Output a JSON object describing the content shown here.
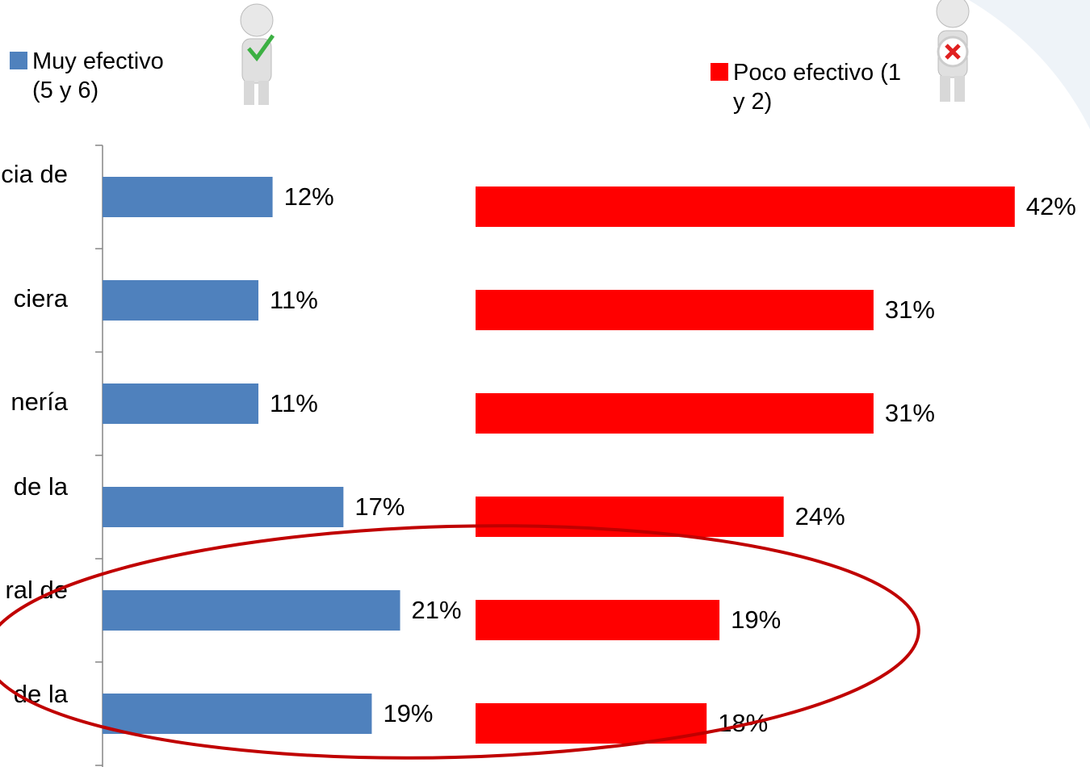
{
  "chart_data": {
    "type": "bar",
    "categories": [
      "cia de",
      "ciera",
      "nería",
      "de la",
      "ral de",
      "de la"
    ],
    "series": [
      {
        "name": "Muy efectivo (5 y 6)",
        "color": "#4f81bd",
        "values": [
          12,
          11,
          11,
          17,
          21,
          19
        ],
        "value_labels": [
          "12%",
          "11%",
          "11%",
          "17%",
          "21%",
          "19%"
        ]
      },
      {
        "name": "Poco efectivo (1 y 2)",
        "color": "#ff0000",
        "values": [
          42,
          31,
          31,
          24,
          19,
          18
        ],
        "value_labels": [
          "42%",
          "31%",
          "31%",
          "24%",
          "19%",
          "18%"
        ]
      }
    ]
  }
}
